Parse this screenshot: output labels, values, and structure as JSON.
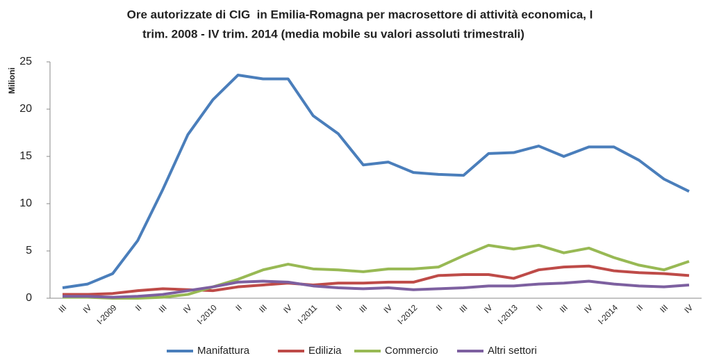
{
  "chart_data": {
    "type": "line",
    "title": [
      "Ore autorizzate di CIG  in Emilia-Romagna per macrosettore di attività economica, I",
      "trim. 2008 - IV trim. 2014 (media mobile su valori assoluti trimestrali)"
    ],
    "y_label": "Milioni",
    "categories": [
      "III",
      "IV",
      "I-2009",
      "II",
      "III",
      "IV",
      "I-2010",
      "II",
      "III",
      "IV",
      "I-2011",
      "II",
      "III",
      "IV",
      "I-2012",
      "II",
      "III",
      "IV",
      "I-2013",
      "II",
      "III",
      "IV",
      "I-2014",
      "II",
      "III",
      "IV"
    ],
    "series": [
      {
        "name": "Manifattura",
        "color": "#4a7ebb",
        "values": [
          1.1,
          1.5,
          2.6,
          6.1,
          11.5,
          17.3,
          21.0,
          23.6,
          23.2,
          23.2,
          19.3,
          17.4,
          14.1,
          14.4,
          13.3,
          13.1,
          13.0,
          15.3,
          15.4,
          16.1,
          15.0,
          16.0,
          16.0,
          14.6,
          12.6,
          11.3
        ]
      },
      {
        "name": "Edilizia",
        "color": "#be4b48",
        "values": [
          0.4,
          0.4,
          0.5,
          0.8,
          1.0,
          0.9,
          0.8,
          1.2,
          1.4,
          1.6,
          1.4,
          1.6,
          1.6,
          1.7,
          1.7,
          2.4,
          2.5,
          2.5,
          2.1,
          3.0,
          3.3,
          3.4,
          2.9,
          2.7,
          2.6,
          2.4
        ]
      },
      {
        "name": "Commercio",
        "color": "#98b954",
        "values": [
          0.1,
          0.1,
          0.0,
          0.0,
          0.1,
          0.4,
          1.2,
          2.0,
          3.0,
          3.6,
          3.1,
          3.0,
          2.8,
          3.1,
          3.1,
          3.3,
          4.5,
          5.6,
          5.2,
          5.6,
          4.8,
          5.3,
          4.3,
          3.5,
          3.0,
          3.9
        ]
      },
      {
        "name": "Altri settori",
        "color": "#7d60a0",
        "values": [
          0.2,
          0.2,
          0.1,
          0.2,
          0.4,
          0.8,
          1.2,
          1.7,
          1.8,
          1.7,
          1.3,
          1.1,
          1.0,
          1.1,
          0.9,
          1.0,
          1.1,
          1.3,
          1.3,
          1.5,
          1.6,
          1.8,
          1.5,
          1.3,
          1.2,
          1.4
        ]
      }
    ],
    "ylim": [
      0,
      25
    ],
    "yticks": [
      0,
      5,
      10,
      15,
      20,
      25
    ],
    "grid": false,
    "legend": "bottom"
  }
}
